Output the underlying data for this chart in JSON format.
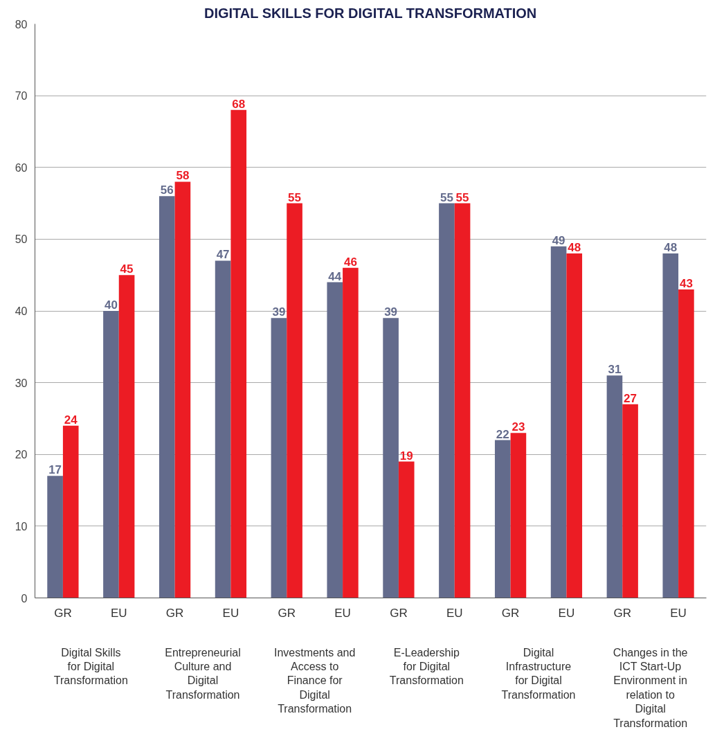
{
  "chart_data": {
    "type": "bar",
    "title": "DIGITAL SKILLS FOR DIGITAL TRANSFORMATION",
    "categories": [
      "GR",
      "EU",
      "GR",
      "EU",
      "GR",
      "EU",
      "GR",
      "EU",
      "GR",
      "EU",
      "GR",
      "EU"
    ],
    "series": [
      {
        "color": "#636b8c",
        "values": [
          17,
          40,
          56,
          47,
          39,
          44,
          39,
          55,
          22,
          49,
          31,
          48
        ]
      },
      {
        "color": "#ec1c24",
        "values": [
          24,
          45,
          58,
          68,
          55,
          46,
          19,
          55,
          23,
          48,
          27,
          43
        ]
      }
    ],
    "ylim": [
      0,
      80
    ],
    "yticks": [
      0,
      10,
      20,
      30,
      40,
      50,
      60,
      70,
      80
    ],
    "grid": "y",
    "data_labels": true,
    "annotations": [
      "Digital Skills for Digital Transformation",
      "Entrepreneurial Culture and Digital Transformation",
      "Investments and Access to Finance for Digital Transformation",
      "E-Leadership for Digital Transformation",
      "Digital Infrastructure for Digital Transformation",
      "Changes in the ICT Start-Up Environment in relation to Digital Transformation"
    ]
  }
}
